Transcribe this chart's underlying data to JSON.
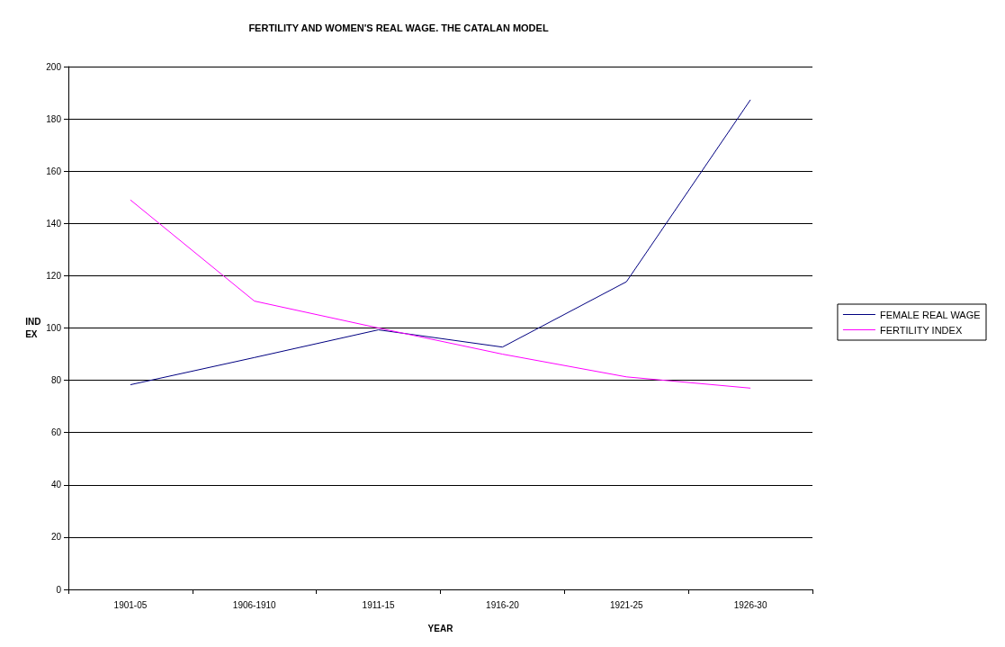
{
  "chart_data": {
    "type": "line",
    "title": "FERTILITY AND WOMEN'S REAL WAGE. THE CATALAN MODEL",
    "xlabel": "YEAR",
    "ylabel": "IND\nEX",
    "categories": [
      "1901-05",
      "1906-1910",
      "1911-15",
      "1916-20",
      "1921-25",
      "1926-30"
    ],
    "series": [
      {
        "name": "FEMALE REAL WAGE",
        "color": "#000080",
        "values": [
          78.3,
          88.7,
          99.3,
          92.7,
          117.7,
          187.3
        ]
      },
      {
        "name": "FERTILITY INDEX",
        "color": "#ff00ff",
        "values": [
          149,
          110.3,
          100,
          90,
          81.3,
          77
        ]
      }
    ],
    "ylim": [
      0,
      200
    ],
    "yticks": [
      0,
      20,
      40,
      60,
      80,
      100,
      120,
      140,
      160,
      180,
      200
    ],
    "grid": "y",
    "legend": "right",
    "marker": "none",
    "line_style": "solid"
  }
}
